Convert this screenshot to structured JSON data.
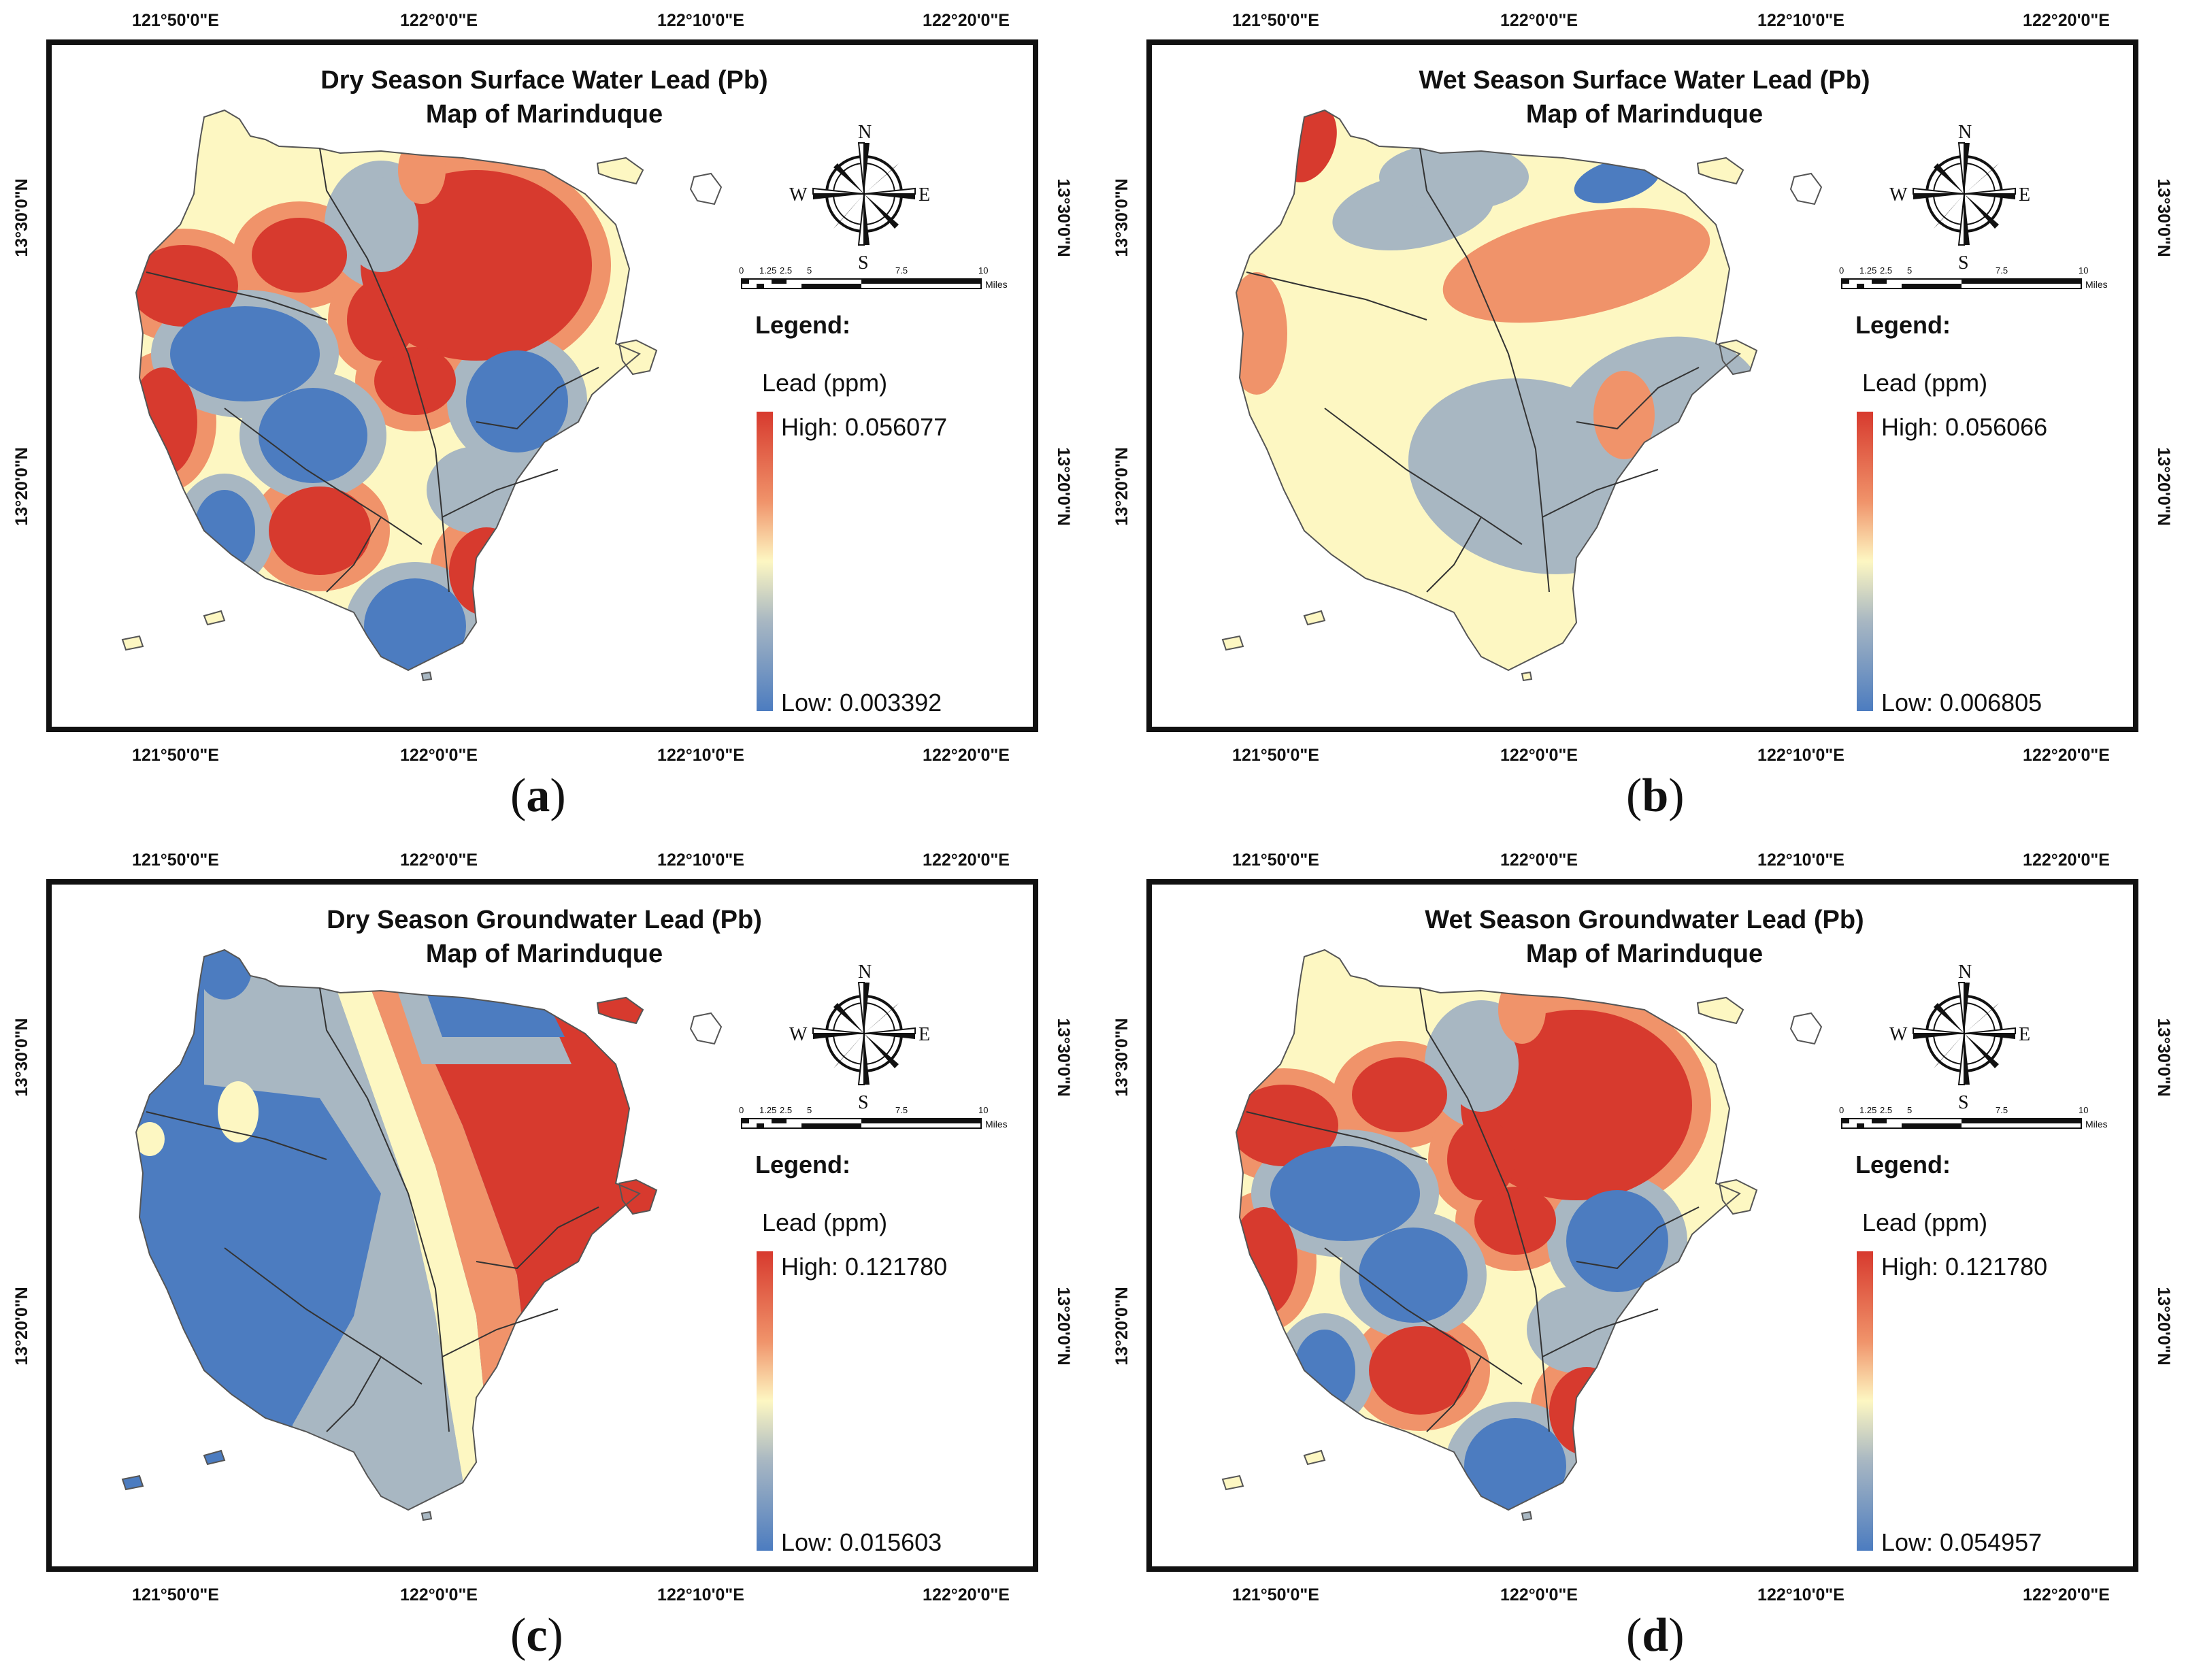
{
  "figure": {
    "panels": [
      {
        "id": "a",
        "caption": "a",
        "title_line1": "Dry Season Surface Water Lead (Pb)",
        "title_line2": "Map of Marinduque",
        "legend_title": "Legend:",
        "legend_unit": "Lead (ppm)",
        "legend_high": "High: 0.056077",
        "legend_low": "Low: 0.003392",
        "pattern": "patchy"
      },
      {
        "id": "b",
        "caption": "b",
        "title_line1": "Wet Season Surface Water Lead (Pb)",
        "title_line2": "Map of Marinduque",
        "legend_title": "Legend:",
        "legend_unit": "Lead (ppm)",
        "legend_high": "High: 0.056066",
        "legend_low": "Low: 0.006805",
        "pattern": "smooth"
      },
      {
        "id": "c",
        "caption": "c",
        "title_line1": "Dry Season Groundwater Lead (Pb)",
        "title_line2": "Map of Marinduque",
        "legend_title": "Legend:",
        "legend_unit": "Lead (ppm)",
        "legend_high": "High: 0.121780",
        "legend_low": "Low: 0.015603",
        "pattern": "split"
      },
      {
        "id": "d",
        "caption": "d",
        "title_line1": "Wet Season Groundwater Lead (Pb)",
        "title_line2": "Map of Marinduque",
        "legend_title": "Legend:",
        "legend_unit": "Lead (ppm)",
        "legend_high": "High: 0.121780",
        "legend_low": "Low: 0.054957",
        "pattern": "patchy"
      }
    ],
    "longitude_labels": [
      "121°50'0\"E",
      "122°0'0\"E",
      "122°10'0\"E",
      "122°20'0\"E"
    ],
    "latitude_labels": [
      "13°30'0\"N",
      "13°20'0\"N"
    ],
    "compass": {
      "n": "N",
      "s": "S",
      "e": "E",
      "w": "W"
    },
    "scale_bar": {
      "ticks": [
        "0",
        "1.25",
        "2.5",
        "5",
        "7.5",
        "10"
      ],
      "unit": "Miles"
    },
    "colors": {
      "high": "#d73a2e",
      "mid_high": "#f0936a",
      "mid": "#fdf7c2",
      "mid_low": "#a8b7c2",
      "low": "#4c7cc0"
    }
  }
}
